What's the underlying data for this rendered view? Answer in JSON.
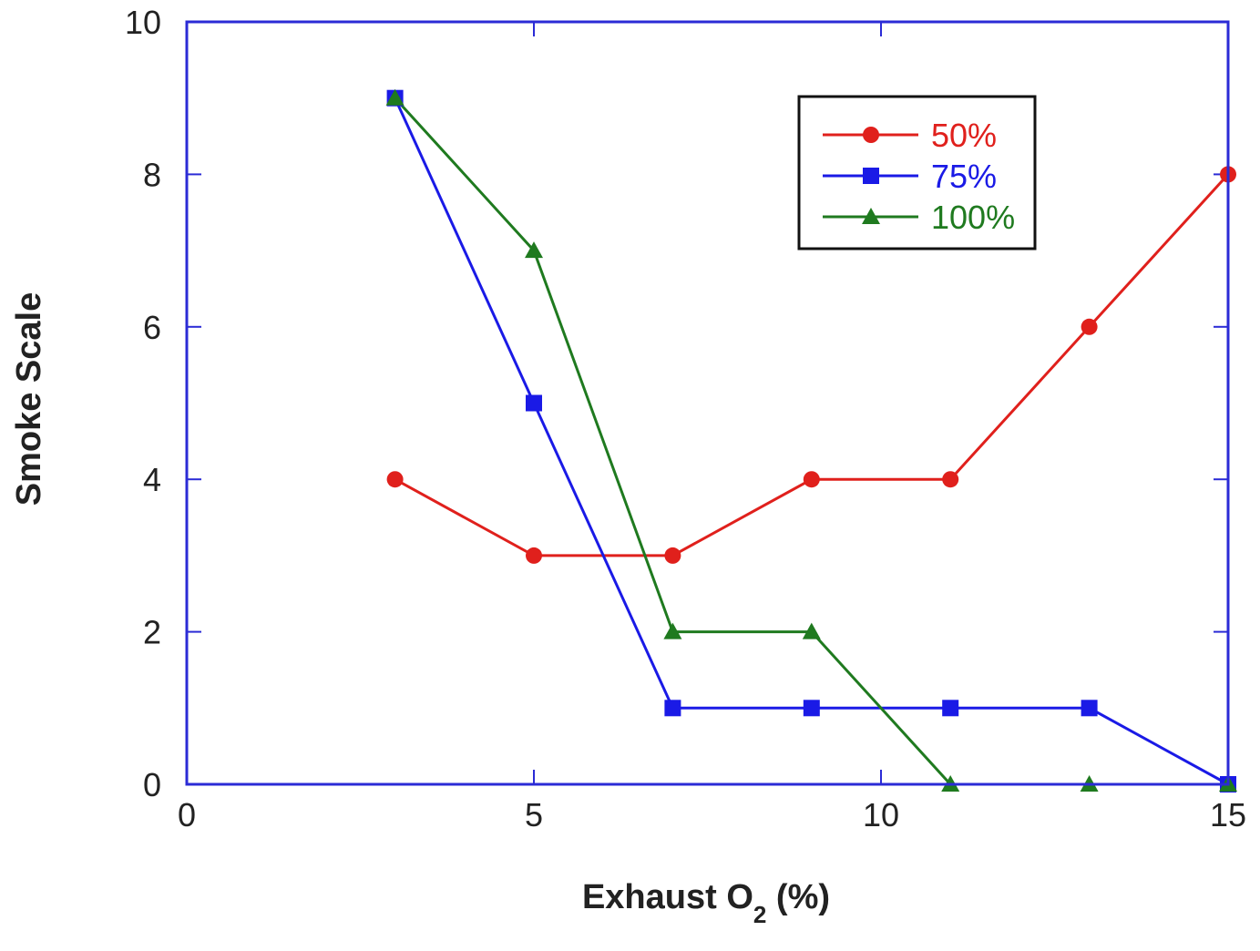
{
  "chart_data": {
    "type": "line",
    "title": "",
    "xlabel": "Exhaust O",
    "xlabel_subscript": "2",
    "xlabel_suffix": " (%)",
    "ylabel": "Smoke Scale",
    "xlim": [
      0,
      15
    ],
    "ylim": [
      0,
      10
    ],
    "x_ticks": [
      0,
      5,
      10,
      15
    ],
    "y_ticks": [
      0,
      2,
      4,
      6,
      8,
      10
    ],
    "grid": false,
    "legend_position": "top-right",
    "frame_color": "#2b2bd6",
    "series": [
      {
        "name": "50%",
        "color": "#e0201c",
        "marker": "circle",
        "x": [
          3,
          5,
          7,
          9,
          11,
          13,
          15
        ],
        "y": [
          4,
          3,
          3,
          4,
          4,
          6,
          8
        ]
      },
      {
        "name": "75%",
        "color": "#1a1ae6",
        "marker": "square",
        "x": [
          3,
          5,
          7,
          9,
          11,
          13,
          15
        ],
        "y": [
          9,
          5,
          1,
          1,
          1,
          1,
          0
        ]
      },
      {
        "name": "100%",
        "color": "#1f7a1f",
        "marker": "triangle",
        "x": [
          3,
          5,
          7,
          9,
          11,
          13,
          15
        ],
        "y": [
          9,
          7,
          2,
          2,
          0,
          0,
          0
        ]
      }
    ]
  }
}
